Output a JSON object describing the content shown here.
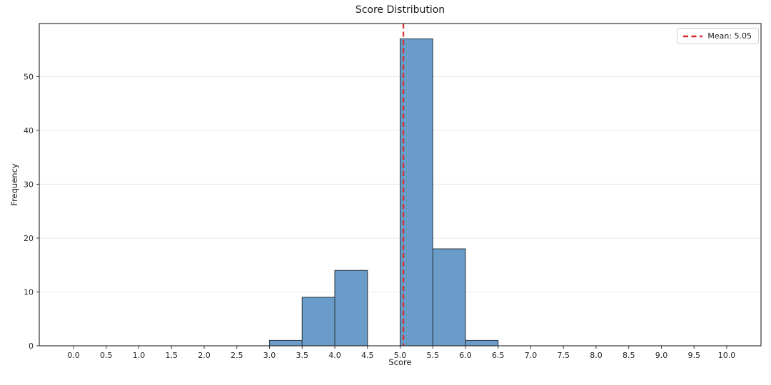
{
  "chart_data": {
    "type": "bar",
    "subtype": "histogram",
    "title": "Score Distribution",
    "xlabel": "Score",
    "ylabel": "Frequency",
    "bin_width": 0.5,
    "bins": [
      {
        "start": 3.0,
        "count": 1
      },
      {
        "start": 3.5,
        "count": 9
      },
      {
        "start": 4.0,
        "count": 14
      },
      {
        "start": 5.0,
        "count": 57
      },
      {
        "start": 5.5,
        "count": 18
      },
      {
        "start": 6.0,
        "count": 1
      }
    ],
    "xticks": [
      0.0,
      0.5,
      1.0,
      1.5,
      2.0,
      2.5,
      3.0,
      3.5,
      4.0,
      4.5,
      5.0,
      5.5,
      6.0,
      6.5,
      7.0,
      7.5,
      8.0,
      8.5,
      9.0,
      9.5,
      10.0
    ],
    "xtick_labels": [
      "0.0",
      "0.5",
      "1.0",
      "1.5",
      "2.0",
      "2.5",
      "3.0",
      "3.5",
      "4.0",
      "4.5",
      "5.0",
      "5.5",
      "6.0",
      "6.5",
      "7.0",
      "7.5",
      "8.0",
      "8.5",
      "9.0",
      "9.5",
      "10.0"
    ],
    "yticks": [
      0,
      10,
      20,
      30,
      40,
      50
    ],
    "ytick_labels": [
      "0",
      "10",
      "20",
      "30",
      "40",
      "50"
    ],
    "xlim": [
      -0.525,
      10.525
    ],
    "ylim": [
      0,
      59.85
    ],
    "grid": "y-only",
    "legend_position": "upper-right",
    "mean_line": {
      "value": 5.05,
      "label": "Mean: 5.05",
      "color": "#d62b2b",
      "style": "dashed"
    },
    "legend": {
      "entries": [
        {
          "label": "Mean: 5.05",
          "color": "#d62b2b",
          "line_style": "dashed"
        }
      ]
    },
    "colors": {
      "bar_fill": "#699cc8",
      "bar_edge": "#33414d",
      "grid": "#e9e9e9",
      "spine": "#333333",
      "text": "#262626"
    }
  }
}
